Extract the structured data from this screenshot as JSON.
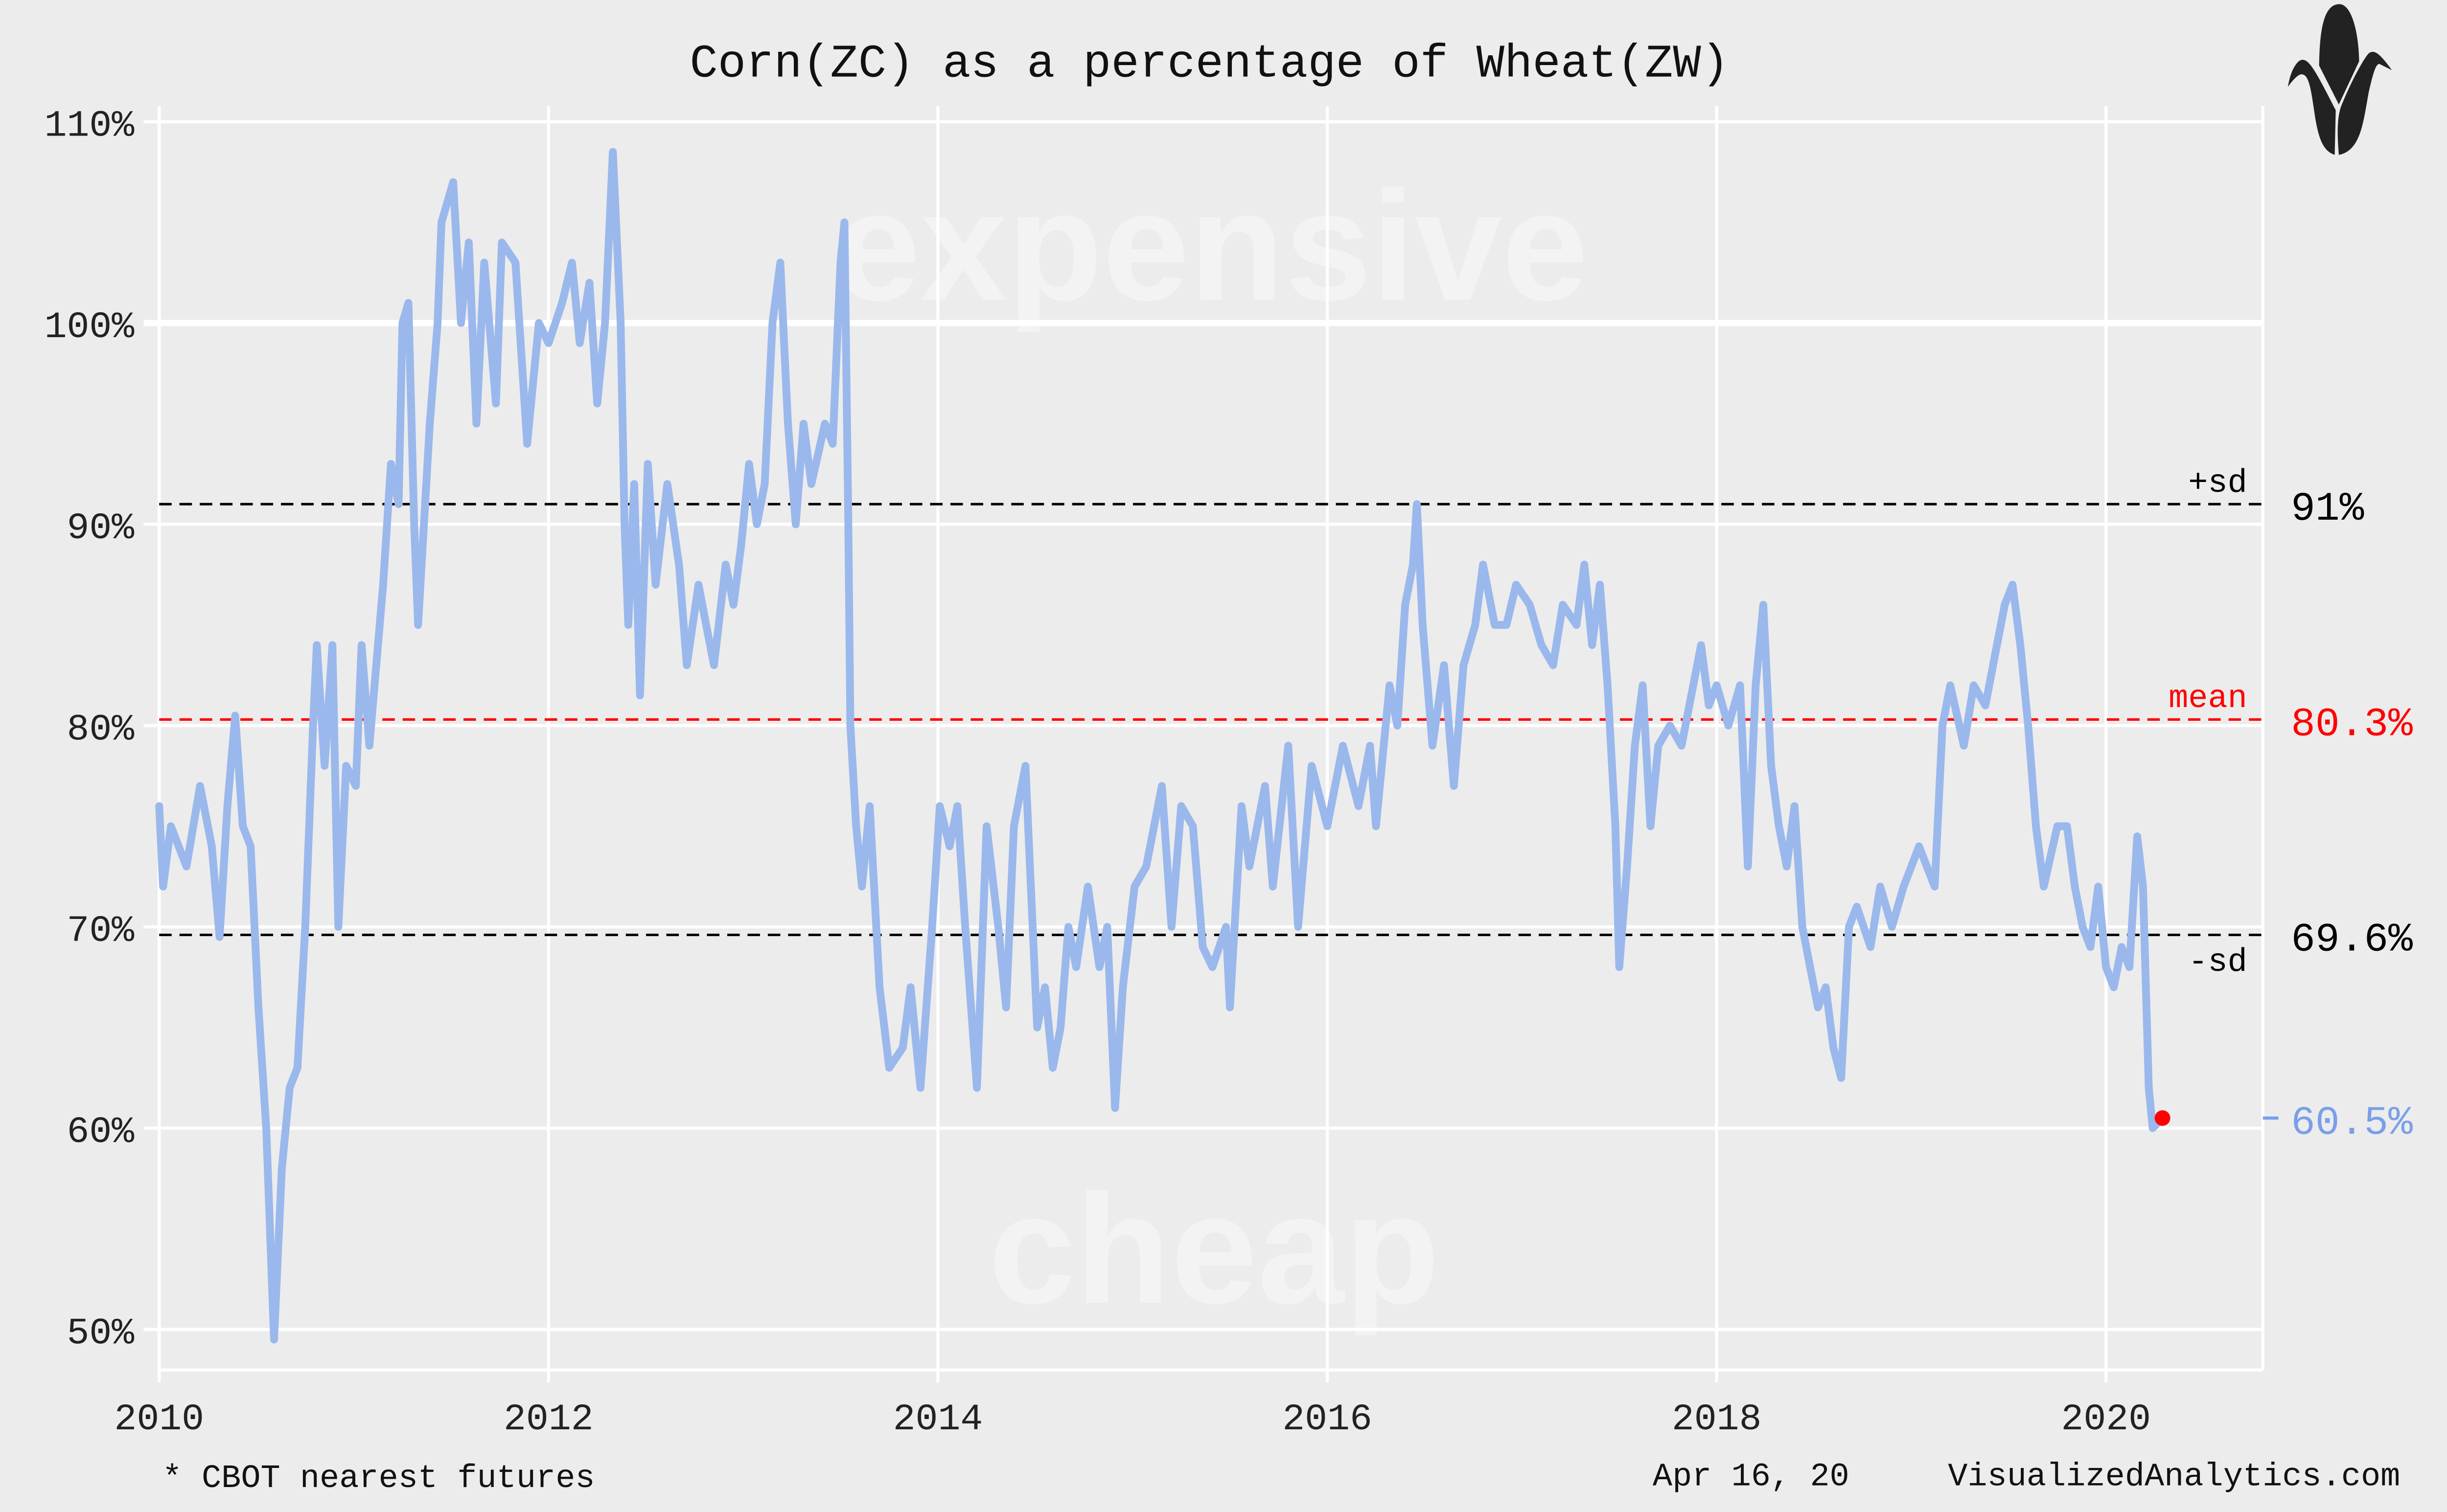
{
  "chart_data": {
    "type": "line",
    "title": "Corn(ZC) as a percentage of Wheat(ZW)",
    "xlabel": "",
    "ylabel": "",
    "xlim": [
      2010,
      2020.8
    ],
    "ylim": [
      48,
      112
    ],
    "grid": true,
    "x_ticks": [
      2010,
      2012,
      2014,
      2016,
      2018,
      2020
    ],
    "x_tick_labels": [
      "2010",
      "2012",
      "2014",
      "2016",
      "2018",
      "2020"
    ],
    "y_ticks": [
      50,
      60,
      70,
      80,
      90,
      100,
      110
    ],
    "y_tick_labels": [
      "50%",
      "60%",
      "70%",
      "80%",
      "90%",
      "100%",
      "110%"
    ],
    "series": [
      {
        "name": "Corn/Wheat ratio",
        "color": "#9ab8ec",
        "points": [
          [
            2010.0,
            76
          ],
          [
            2010.02,
            72
          ],
          [
            2010.06,
            75
          ],
          [
            2010.14,
            73
          ],
          [
            2010.21,
            77
          ],
          [
            2010.27,
            74
          ],
          [
            2010.31,
            69.5
          ],
          [
            2010.35,
            76
          ],
          [
            2010.39,
            80.5
          ],
          [
            2010.43,
            75
          ],
          [
            2010.47,
            74
          ],
          [
            2010.51,
            66
          ],
          [
            2010.55,
            60
          ],
          [
            2010.59,
            49.5
          ],
          [
            2010.63,
            58
          ],
          [
            2010.67,
            62
          ],
          [
            2010.71,
            63
          ],
          [
            2010.75,
            70
          ],
          [
            2010.79,
            80
          ],
          [
            2010.81,
            84
          ],
          [
            2010.85,
            78
          ],
          [
            2010.89,
            84
          ],
          [
            2010.92,
            70
          ],
          [
            2010.96,
            78
          ],
          [
            2011.01,
            77
          ],
          [
            2011.04,
            84
          ],
          [
            2011.08,
            79
          ],
          [
            2011.15,
            87
          ],
          [
            2011.19,
            93
          ],
          [
            2011.23,
            91
          ],
          [
            2011.25,
            100
          ],
          [
            2011.28,
            101
          ],
          [
            2011.31,
            90
          ],
          [
            2011.33,
            85
          ],
          [
            2011.39,
            95
          ],
          [
            2011.43,
            100
          ],
          [
            2011.45,
            105
          ],
          [
            2011.51,
            107
          ],
          [
            2011.55,
            100
          ],
          [
            2011.59,
            104
          ],
          [
            2011.63,
            95
          ],
          [
            2011.67,
            103
          ],
          [
            2011.73,
            96
          ],
          [
            2011.76,
            104
          ],
          [
            2011.83,
            103
          ],
          [
            2011.89,
            94
          ],
          [
            2011.95,
            100
          ],
          [
            2012.0,
            99
          ],
          [
            2012.07,
            101
          ],
          [
            2012.12,
            103
          ],
          [
            2012.16,
            99
          ],
          [
            2012.21,
            102
          ],
          [
            2012.25,
            96
          ],
          [
            2012.29,
            100
          ],
          [
            2012.33,
            108.5
          ],
          [
            2012.37,
            100
          ],
          [
            2012.39,
            90
          ],
          [
            2012.41,
            85
          ],
          [
            2012.44,
            92
          ],
          [
            2012.47,
            81.5
          ],
          [
            2012.51,
            93
          ],
          [
            2012.55,
            87
          ],
          [
            2012.61,
            92
          ],
          [
            2012.67,
            88
          ],
          [
            2012.71,
            83
          ],
          [
            2012.77,
            87
          ],
          [
            2012.81,
            85
          ],
          [
            2012.85,
            83
          ],
          [
            2012.91,
            88
          ],
          [
            2012.95,
            86
          ],
          [
            2012.99,
            89
          ],
          [
            2013.03,
            93
          ],
          [
            2013.07,
            90
          ],
          [
            2013.11,
            92
          ],
          [
            2013.15,
            100
          ],
          [
            2013.19,
            103
          ],
          [
            2013.23,
            95
          ],
          [
            2013.27,
            90
          ],
          [
            2013.31,
            95
          ],
          [
            2013.35,
            92
          ],
          [
            2013.42,
            95
          ],
          [
            2013.46,
            94
          ],
          [
            2013.5,
            103
          ],
          [
            2013.52,
            105
          ],
          [
            2013.54,
            90
          ],
          [
            2013.55,
            80
          ],
          [
            2013.58,
            75
          ],
          [
            2013.61,
            72
          ],
          [
            2013.65,
            76
          ],
          [
            2013.7,
            67
          ],
          [
            2013.75,
            63
          ],
          [
            2013.82,
            64
          ],
          [
            2013.86,
            67
          ],
          [
            2013.91,
            62
          ],
          [
            2013.97,
            70
          ],
          [
            2014.01,
            76
          ],
          [
            2014.06,
            74
          ],
          [
            2014.1,
            76
          ],
          [
            2014.14,
            70
          ],
          [
            2014.2,
            62
          ],
          [
            2014.25,
            75
          ],
          [
            2014.31,
            70
          ],
          [
            2014.35,
            66
          ],
          [
            2014.39,
            75
          ],
          [
            2014.45,
            78
          ],
          [
            2014.51,
            65
          ],
          [
            2014.55,
            67
          ],
          [
            2014.59,
            63
          ],
          [
            2014.63,
            65
          ],
          [
            2014.67,
            70
          ],
          [
            2014.71,
            68
          ],
          [
            2014.77,
            72
          ],
          [
            2014.83,
            68
          ],
          [
            2014.87,
            70
          ],
          [
            2014.91,
            61
          ],
          [
            2014.95,
            67
          ],
          [
            2015.01,
            72
          ],
          [
            2015.07,
            73
          ],
          [
            2015.15,
            77
          ],
          [
            2015.2,
            70
          ],
          [
            2015.25,
            76
          ],
          [
            2015.31,
            75
          ],
          [
            2015.36,
            69
          ],
          [
            2015.41,
            68
          ],
          [
            2015.48,
            70
          ],
          [
            2015.5,
            66
          ],
          [
            2015.56,
            76
          ],
          [
            2015.6,
            73
          ],
          [
            2015.68,
            77
          ],
          [
            2015.72,
            72
          ],
          [
            2015.8,
            79
          ],
          [
            2015.85,
            70
          ],
          [
            2015.92,
            78
          ],
          [
            2016.0,
            75
          ],
          [
            2016.08,
            79
          ],
          [
            2016.16,
            76
          ],
          [
            2016.22,
            79
          ],
          [
            2016.25,
            75
          ],
          [
            2016.32,
            82
          ],
          [
            2016.36,
            80
          ],
          [
            2016.4,
            86
          ],
          [
            2016.44,
            88
          ],
          [
            2016.46,
            91
          ],
          [
            2016.49,
            85
          ],
          [
            2016.54,
            79
          ],
          [
            2016.6,
            83
          ],
          [
            2016.65,
            77
          ],
          [
            2016.7,
            83
          ],
          [
            2016.76,
            85
          ],
          [
            2016.8,
            88
          ],
          [
            2016.86,
            85
          ],
          [
            2016.92,
            85
          ],
          [
            2016.97,
            87
          ],
          [
            2017.04,
            86
          ],
          [
            2017.1,
            84
          ],
          [
            2017.16,
            83
          ],
          [
            2017.21,
            86
          ],
          [
            2017.28,
            85
          ],
          [
            2017.32,
            88
          ],
          [
            2017.36,
            84
          ],
          [
            2017.4,
            87
          ],
          [
            2017.44,
            82
          ],
          [
            2017.48,
            75
          ],
          [
            2017.5,
            68
          ],
          [
            2017.54,
            73
          ],
          [
            2017.58,
            79
          ],
          [
            2017.62,
            82
          ],
          [
            2017.66,
            75
          ],
          [
            2017.7,
            79
          ],
          [
            2017.76,
            80
          ],
          [
            2017.82,
            79
          ],
          [
            2017.88,
            82
          ],
          [
            2017.92,
            84
          ],
          [
            2017.96,
            81
          ],
          [
            2018.0,
            82
          ],
          [
            2018.06,
            80
          ],
          [
            2018.12,
            82
          ],
          [
            2018.16,
            73
          ],
          [
            2018.2,
            82
          ],
          [
            2018.24,
            86
          ],
          [
            2018.28,
            78
          ],
          [
            2018.32,
            75
          ],
          [
            2018.36,
            73
          ],
          [
            2018.4,
            76
          ],
          [
            2018.44,
            70
          ],
          [
            2018.48,
            68
          ],
          [
            2018.52,
            66
          ],
          [
            2018.56,
            67
          ],
          [
            2018.6,
            64
          ],
          [
            2018.64,
            62.5
          ],
          [
            2018.68,
            70
          ],
          [
            2018.72,
            71
          ],
          [
            2018.79,
            69
          ],
          [
            2018.84,
            72
          ],
          [
            2018.9,
            70
          ],
          [
            2018.96,
            72
          ],
          [
            2019.04,
            74
          ],
          [
            2019.12,
            72
          ],
          [
            2019.16,
            80
          ],
          [
            2019.2,
            82
          ],
          [
            2019.27,
            79
          ],
          [
            2019.32,
            82
          ],
          [
            2019.38,
            81
          ],
          [
            2019.44,
            84
          ],
          [
            2019.48,
            86
          ],
          [
            2019.52,
            87
          ],
          [
            2019.56,
            84
          ],
          [
            2019.6,
            80
          ],
          [
            2019.64,
            75
          ],
          [
            2019.68,
            72
          ],
          [
            2019.75,
            75
          ],
          [
            2019.8,
            75
          ],
          [
            2019.84,
            72
          ],
          [
            2019.88,
            70
          ],
          [
            2019.92,
            69
          ],
          [
            2019.96,
            72
          ],
          [
            2020.0,
            68
          ],
          [
            2020.04,
            67
          ],
          [
            2020.08,
            69
          ],
          [
            2020.12,
            68
          ],
          [
            2020.16,
            74.5
          ],
          [
            2020.19,
            72
          ],
          [
            2020.22,
            62
          ],
          [
            2020.24,
            60
          ],
          [
            2020.29,
            60.5
          ]
        ]
      }
    ],
    "reference_lines": [
      {
        "name": "+sd",
        "value": 91,
        "label": "+sd",
        "value_label": "91%",
        "color": "#000000"
      },
      {
        "name": "mean",
        "value": 80.3,
        "label": "mean",
        "value_label": "80.3%",
        "color": "#ff0000"
      },
      {
        "name": "-sd",
        "value": 69.6,
        "label": "-sd",
        "value_label": "69.6%",
        "color": "#000000"
      }
    ],
    "current": {
      "x": 2020.29,
      "value": 60.5,
      "label": "60.5%",
      "color": "#7a9fe8",
      "marker_color": "#ff0000"
    },
    "annotations": {
      "upper": "expensive",
      "lower": "cheap"
    },
    "footnote": "* CBOT nearest futures",
    "date": "Apr 16, 20",
    "source": "VisualizedAnalytics.com"
  },
  "colors": {
    "background": "#ececec",
    "grid": "#ffffff",
    "line": "#9ab8ec"
  },
  "logo": {
    "icon": "corn-icon"
  }
}
